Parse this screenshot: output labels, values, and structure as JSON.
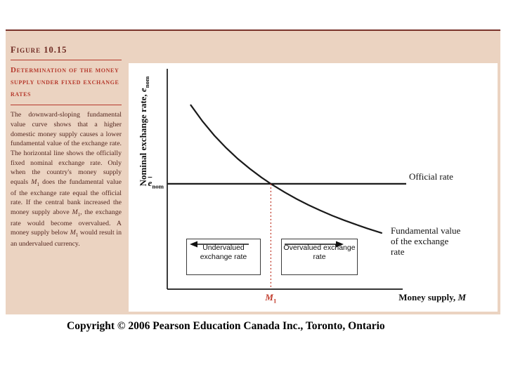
{
  "page": {
    "copyright_line": "Copyright © 2006 Pearson Education Canada Inc., Toronto, Ontario"
  },
  "panel": {
    "figure_label": "Figure 10.15",
    "heading": "Determination of the money supply under fixed exchange rates",
    "caption_segments": [
      {
        "text": "The downward-sloping fundamental value curve shows that a higher domestic money supply causes a lower fundamental value of the exchange rate. The horizontal line shows the officially fixed nominal exchange rate. Only when the country's money supply equals "
      },
      {
        "var": "M",
        "sub": "1"
      },
      {
        "text": " does the fundamental value of the exchange rate equal the official rate. If the central bank increased the money supply above "
      },
      {
        "var": "M",
        "sub": "1"
      },
      {
        "text": ", the exchange rate would become overvalued. A money supply below "
      },
      {
        "var": "M",
        "sub": "1"
      },
      {
        "text": " would result in an undervalued currency."
      }
    ]
  },
  "chart_data": {
    "type": "line",
    "title": "Figure 10.15: Determination of the money supply under fixed exchange rates",
    "xlabel": "Money supply, M",
    "ylabel": "Nominal exchange rate, e_nom",
    "xlabel_parts": {
      "main": "Money supply, ",
      "var": "M"
    },
    "ylabel_parts": {
      "main": "Nominal exchange rate, ",
      "var": "e",
      "sub": "nom"
    },
    "x_range": [
      0,
      1
    ],
    "y_range": [
      0,
      1
    ],
    "axes_numeric": false,
    "grid": false,
    "official_rate": {
      "label": "Official rate",
      "level": 0.478
    },
    "fundamental_curve": {
      "label": "Fundamental value of the exchange rate",
      "x": [
        0.1,
        0.15,
        0.2,
        0.25,
        0.3,
        0.35,
        0.4,
        0.44,
        0.5,
        0.55,
        0.6,
        0.65,
        0.7,
        0.75,
        0.8,
        0.85,
        0.91
      ],
      "y": [
        0.835,
        0.761,
        0.697,
        0.641,
        0.591,
        0.547,
        0.507,
        0.478,
        0.439,
        0.409,
        0.382,
        0.357,
        0.334,
        0.313,
        0.294,
        0.275,
        0.255
      ]
    },
    "equilibrium": {
      "x": 0.44,
      "x_marker": {
        "var": "M",
        "sub": "1"
      },
      "y_marker": {
        "var": "e",
        "sub": "nom",
        "overline": true
      }
    },
    "regions": [
      {
        "label": "Undervalued exchange rate",
        "arrow": "left"
      },
      {
        "label": "Overvalued exchange rate",
        "arrow": "right"
      }
    ],
    "colors": {
      "axis": "#1a1a1a",
      "curve": "#1a1a1a",
      "official_line": "#1a1a1a",
      "marker_dotted": "#c13b2b",
      "panel_background": "#ebd3c1",
      "heading_red": "#b5392c"
    }
  }
}
